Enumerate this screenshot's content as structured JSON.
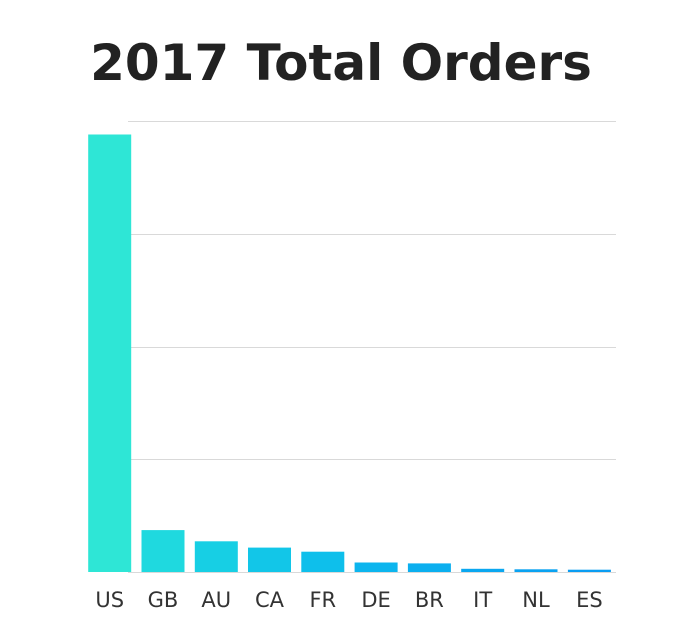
{
  "chart_data": {
    "type": "bar",
    "title": "2017 Total Orders",
    "xlabel": "",
    "ylabel": "",
    "categories": [
      "US",
      "GB",
      "AU",
      "CA",
      "FR",
      "DE",
      "BR",
      "IT",
      "NL",
      "ES"
    ],
    "values": [
      97,
      9.3,
      6.8,
      5.4,
      4.5,
      2.1,
      1.9,
      0.7,
      0.6,
      0.5
    ],
    "ylim": [
      0,
      100
    ],
    "grid": true,
    "colors": [
      "#2ee6d6",
      "#1fd9df",
      "#17cfe4",
      "#12c6e8",
      "#0ebfeb",
      "#0cb5ee",
      "#0bafef",
      "#0aa7f0",
      "#0aa2f1",
      "#0a9df2"
    ]
  }
}
